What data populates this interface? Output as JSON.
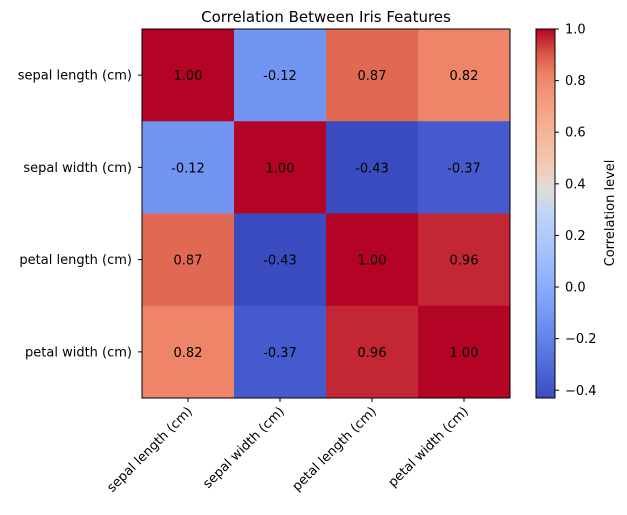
{
  "chart_data": {
    "type": "heatmap",
    "title": "Correlation Between Iris Features",
    "row_labels": [
      "sepal length (cm)",
      "sepal width (cm)",
      "petal length (cm)",
      "petal width (cm)"
    ],
    "col_labels": [
      "sepal length (cm)",
      "sepal width (cm)",
      "petal length (cm)",
      "petal width (cm)"
    ],
    "values": [
      [
        1.0,
        -0.12,
        0.87,
        0.82
      ],
      [
        -0.12,
        1.0,
        -0.43,
        -0.37
      ],
      [
        0.87,
        -0.43,
        1.0,
        0.96
      ],
      [
        0.82,
        -0.37,
        0.96,
        1.0
      ]
    ],
    "cell_labels": [
      [
        "1.00",
        "-0.12",
        "0.87",
        "0.82"
      ],
      [
        "-0.12",
        "1.00",
        "-0.43",
        "-0.37"
      ],
      [
        "0.87",
        "-0.43",
        "1.00",
        "0.96"
      ],
      [
        "0.82",
        "-0.37",
        "0.96",
        "1.00"
      ]
    ],
    "colormap": "coolwarm",
    "colorbar": {
      "label": "Correlation level",
      "range": [
        -0.43,
        1.0
      ],
      "ticks": [
        "−0.4",
        "−0.2",
        "0.0",
        "0.2",
        "0.4",
        "0.6",
        "0.8",
        "1.0"
      ],
      "tick_values": [
        -0.4,
        -0.2,
        0.0,
        0.2,
        0.4,
        0.6,
        0.8,
        1.0
      ]
    },
    "x_tick_rotation": 45,
    "grid": false
  }
}
